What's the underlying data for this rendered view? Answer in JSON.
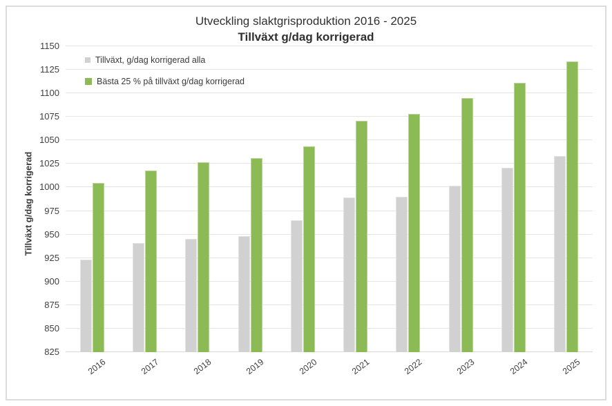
{
  "title": {
    "line1": "Utveckling slaktgrisproduktion 2016 - 2025",
    "line2": "Tillväxt g/dag korrigerad"
  },
  "y_axis": {
    "title": "Tillväxt g/dag korrigerad",
    "min": 825,
    "max": 1150,
    "step": 25
  },
  "colors": {
    "gray_series": "#d1d1d1",
    "green_series": "#8cba55",
    "grid": "#e5e5e5",
    "axis_line": "#d8d8d8",
    "frame_border": "#dcdcdc",
    "text": "#3a3a3a"
  },
  "chart_data": {
    "type": "bar",
    "title": "Utveckling slaktgrisproduktion 2016 - 2025",
    "subtitle": "Tillväxt g/dag korrigerad",
    "xlabel": "",
    "ylabel": "Tillväxt g/dag korrigerad",
    "ylim": [
      825,
      1150
    ],
    "ytick_step": 25,
    "grid": true,
    "legend_position": "top-left-inside",
    "categories": [
      "2016",
      "2017",
      "2018",
      "2019",
      "2020",
      "2021",
      "2022",
      "2023",
      "2024",
      "2025"
    ],
    "series": [
      {
        "name": "Tillväxt, g/dag korrigerad alla",
        "color": "#d1d1d1",
        "values": [
          923,
          941,
          945,
          948,
          965,
          989,
          990,
          1002,
          1021,
          1033
        ]
      },
      {
        "name": "Bästa 25 % på tillväxt g/dag korrigerad",
        "color": "#8cba55",
        "values": [
          1005,
          1018,
          1027,
          1031,
          1044,
          1071,
          1078,
          1095,
          1111,
          1134
        ]
      }
    ]
  }
}
